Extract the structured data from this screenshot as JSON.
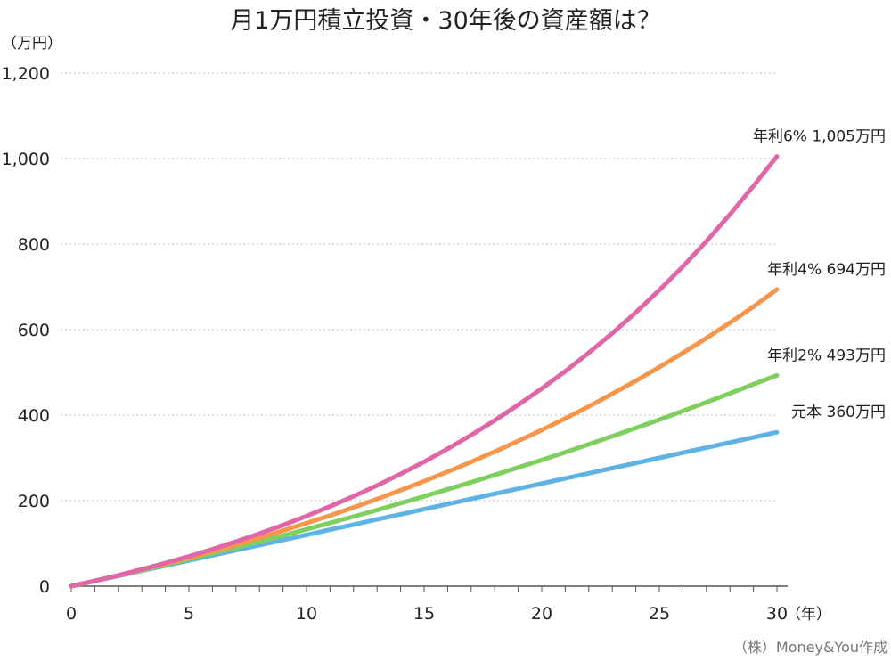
{
  "chart_data": {
    "type": "line",
    "title": "月1万円積立投資・30年後の資産額は？",
    "ylabel": "（万円）",
    "xlabel": "（年）",
    "ylim": [
      0,
      1200
    ],
    "xlim": [
      0,
      30
    ],
    "y_ticks": [
      "0",
      "200",
      "400",
      "600",
      "800",
      "1,000",
      "1,200"
    ],
    "y_tick_values": [
      0,
      200,
      400,
      600,
      800,
      1000,
      1200
    ],
    "x_ticks": [
      "0",
      "5",
      "10",
      "15",
      "20",
      "25",
      "30"
    ],
    "x_tick_values": [
      0,
      5,
      10,
      15,
      20,
      25,
      30
    ],
    "x": [
      0,
      1,
      2,
      3,
      4,
      5,
      6,
      7,
      8,
      9,
      10,
      11,
      12,
      13,
      14,
      15,
      16,
      17,
      18,
      19,
      20,
      21,
      22,
      23,
      24,
      25,
      26,
      27,
      28,
      29,
      30
    ],
    "grid": true,
    "series": [
      {
        "name": "年利6%",
        "end_label": "年利6%  1,005万円",
        "color": "#e066a8",
        "values": [
          0,
          12.3,
          25.4,
          39.3,
          54.1,
          69.8,
          86.4,
          104.1,
          122.9,
          142.8,
          163.9,
          186.4,
          210.2,
          235.5,
          262.4,
          290.9,
          321.2,
          353.4,
          387.6,
          423.9,
          462.0,
          502.5,
          545.6,
          591.5,
          640.3,
          692.2,
          747.6,
          806.5,
          869.2,
          935.8,
          1005.0
        ]
      },
      {
        "name": "年利4%",
        "end_label": "年利4%  694万円",
        "color": "#f7954a",
        "values": [
          0,
          12.2,
          24.9,
          38.2,
          52.0,
          66.3,
          81.3,
          96.8,
          113.0,
          129.9,
          147.2,
          165.3,
          184.1,
          203.7,
          224.1,
          245.4,
          267.5,
          290.6,
          314.6,
          339.6,
          365.0,
          392.1,
          420.3,
          449.7,
          480.3,
          512.2,
          545.4,
          580.0,
          616.0,
          653.5,
          694.0
        ]
      },
      {
        "name": "年利2%",
        "end_label": "年利2%  493万円",
        "color": "#7fcf5f",
        "values": [
          0,
          12.1,
          24.5,
          37.1,
          50.0,
          63.1,
          76.5,
          90.2,
          104.2,
          118.4,
          132.9,
          147.7,
          162.8,
          178.2,
          193.9,
          210.0,
          226.4,
          243.1,
          260.1,
          277.5,
          295.0,
          313.1,
          331.6,
          350.5,
          369.8,
          389.4,
          409.5,
          430.0,
          450.9,
          472.2,
          493.0
        ]
      },
      {
        "name": "元本",
        "end_label": "元本  360万円",
        "color": "#5fb2e4",
        "values": [
          0,
          12,
          24,
          36,
          48,
          60,
          72,
          84,
          96,
          108,
          120,
          132,
          144,
          156,
          168,
          180,
          192,
          204,
          216,
          228,
          240,
          252,
          264,
          276,
          288,
          300,
          312,
          324,
          336,
          348,
          360
        ]
      }
    ],
    "credit": "（株）Money&You作成"
  }
}
